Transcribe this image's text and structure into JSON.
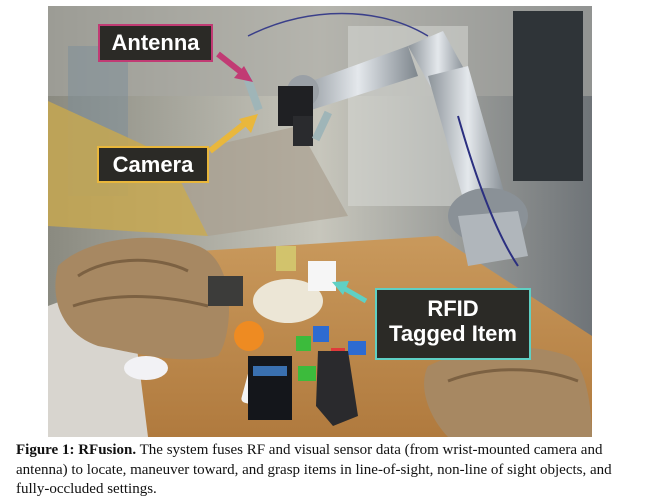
{
  "figure": {
    "labels": {
      "antenna": "Antenna",
      "camera": "Camera",
      "rfid_line1": "RFID",
      "rfid_line2": "Tagged Item"
    },
    "colors": {
      "antenna_accent": "#c13b74",
      "camera_accent": "#e9b73c",
      "rfid_accent": "#5fd0c4"
    }
  },
  "caption": {
    "label": "Figure 1: RFusion.",
    "text": "The system fuses RF and visual sensor data (from wrist-mounted camera and antenna) to locate, maneuver toward, and grasp items in line-of-sight, non-line of sight objects, and fully-occluded settings."
  }
}
